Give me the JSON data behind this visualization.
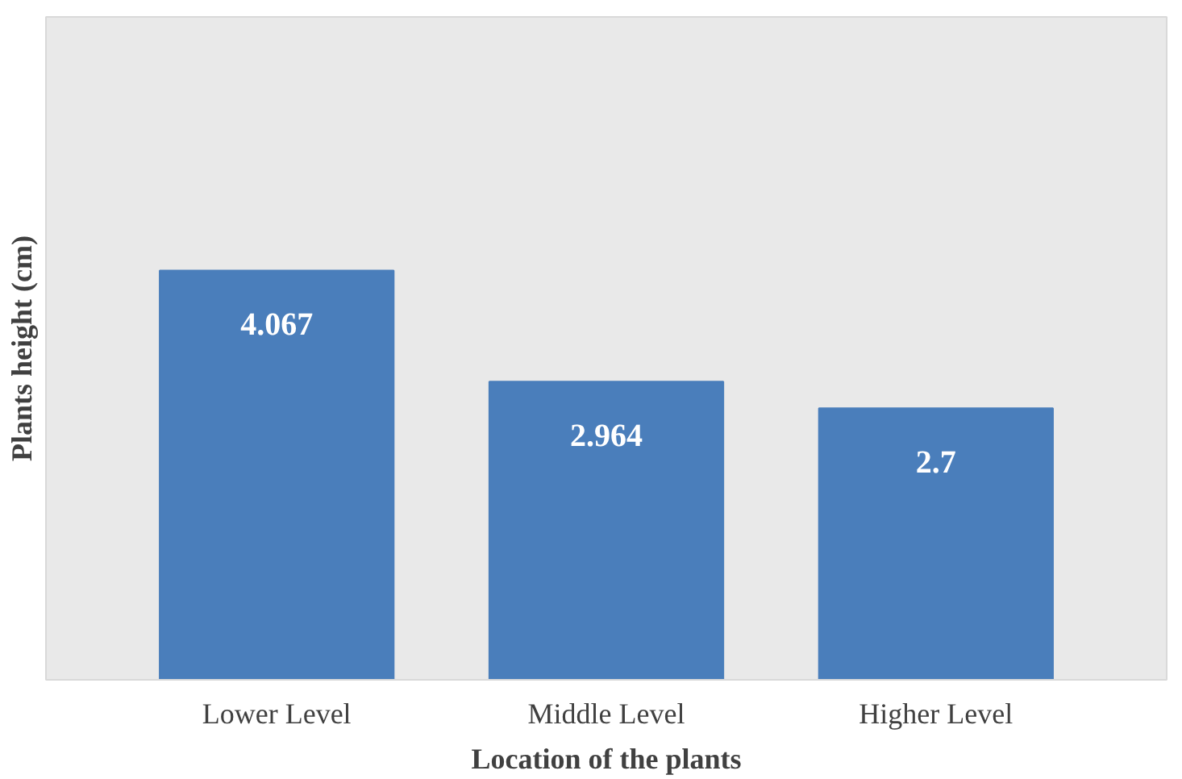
{
  "chart_data": {
    "type": "bar",
    "xlabel": "Location of the plants",
    "ylabel": "Plants height (cm)",
    "categories": [
      "Lower Level",
      "Middle Level",
      "Higher Level"
    ],
    "values": [
      4.067,
      2.964,
      2.7
    ],
    "color": "#4a7ebb",
    "data_labels": true
  }
}
